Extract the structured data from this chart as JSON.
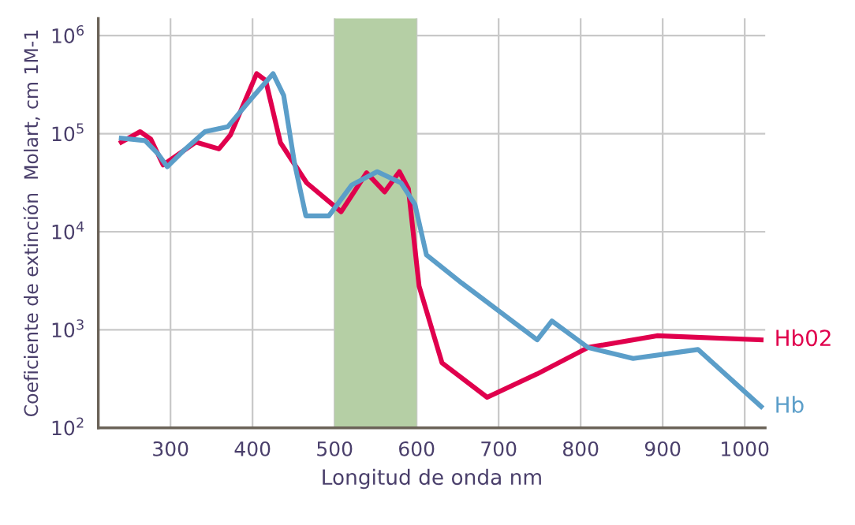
{
  "chart_data": {
    "type": "line",
    "xlabel": "Longitud de onda nm",
    "ylabel": "Coeficiente de extinción  Molart, cm 1M-1",
    "log": "y",
    "grid": true,
    "legend": false,
    "marker": "none",
    "line_style": "solid",
    "xlim": [
      212,
      1025
    ],
    "ylim": [
      100,
      1500000
    ],
    "xticks": [
      300,
      400,
      500,
      600,
      700,
      800,
      900,
      1000
    ],
    "yticks": [
      {
        "value": 100,
        "label": "10$^{2}$"
      },
      {
        "value": 1000,
        "label": "10$^{3}$"
      },
      {
        "value": 10000,
        "label": "10$^{4}$"
      },
      {
        "value": 100000,
        "label": "10$^{5}$"
      },
      {
        "value": 1000000,
        "label": "10$^{6}$"
      }
    ],
    "bands": [
      {
        "axis": "x",
        "from": 500,
        "to": 600,
        "color": "#b5cfa5"
      }
    ],
    "series": [
      {
        "name": "Hb02",
        "color": "#e0004d",
        "x": [
          240,
          263,
          276,
          291,
          331,
          359,
          373,
          405,
          416,
          434,
          466,
          508,
          539,
          561,
          579,
          590,
          603,
          631,
          686,
          747,
          809,
          893,
          1020
        ],
        "values": [
          82000,
          105000,
          88000,
          48000,
          82000,
          70000,
          97000,
          410000,
          350000,
          81000,
          31500,
          16000,
          40000,
          25500,
          41000,
          27500,
          2800,
          460,
          205,
          355,
          660,
          870,
          790
        ]
      },
      {
        "name": "Hb",
        "color": "#5b9ec9",
        "x": [
          240,
          269,
          285,
          296,
          315,
          342,
          370,
          397,
          425,
          438,
          451,
          465,
          493,
          521,
          552,
          581,
          598,
          612,
          655,
          747,
          765,
          809,
          864,
          943,
          1020
        ],
        "values": [
          90000,
          85000,
          62000,
          46000,
          66000,
          105000,
          118000,
          220000,
          410000,
          245000,
          51000,
          14500,
          14500,
          30000,
          41000,
          31500,
          19000,
          5800,
          3000,
          790,
          1230,
          660,
          510,
          630,
          165
        ]
      }
    ]
  }
}
